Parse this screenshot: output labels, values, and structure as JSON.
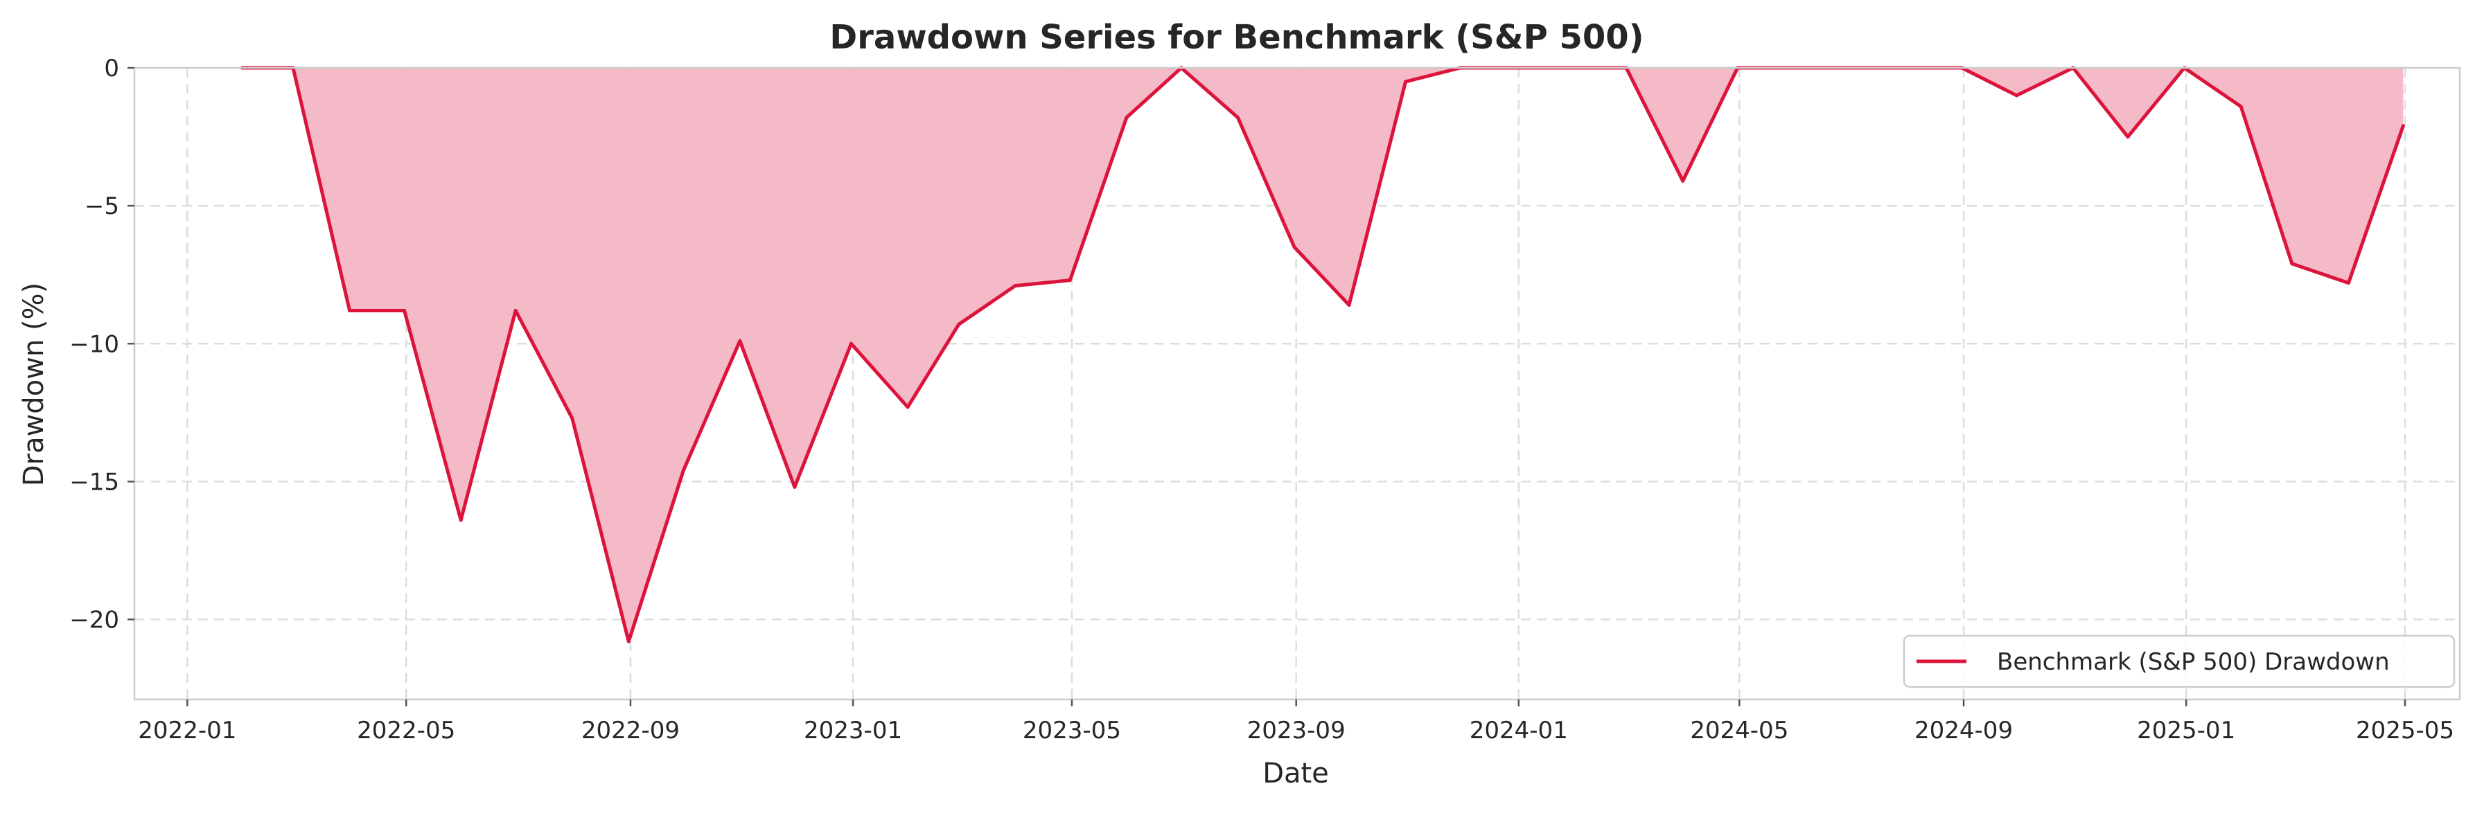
{
  "chart_data": {
    "type": "area",
    "title": "Drawdown Series for Benchmark (S&P 500)",
    "xlabel": "Date",
    "ylabel": "Drawdown (%)",
    "x_ticks": [
      "2022-01",
      "2022-05",
      "2022-09",
      "2023-01",
      "2023-05",
      "2023-09",
      "2024-01",
      "2024-05",
      "2024-09",
      "2025-01",
      "2025-05"
    ],
    "y_ticks": [
      0,
      -5,
      -10,
      -15,
      -20
    ],
    "xlim": [
      "2021-12-03",
      "2025-05-31"
    ],
    "ylim": [
      -22.9,
      0
    ],
    "grid": true,
    "legend_position": "lower-right",
    "colors": {
      "line": "#dc143c",
      "fill": "#f4b6c4",
      "grid": "#dddddd",
      "spine": "#cccccc"
    },
    "series": [
      {
        "name": "Benchmark (S&P 500) Drawdown",
        "x": [
          "2022-01-31",
          "2022-02-28",
          "2022-03-31",
          "2022-04-30",
          "2022-05-31",
          "2022-06-30",
          "2022-07-31",
          "2022-08-31",
          "2022-09-30",
          "2022-10-31",
          "2022-11-30",
          "2022-12-31",
          "2023-01-31",
          "2023-02-28",
          "2023-03-31",
          "2023-04-30",
          "2023-05-31",
          "2023-06-30",
          "2023-07-31",
          "2023-08-31",
          "2023-09-30",
          "2023-10-31",
          "2023-11-30",
          "2023-12-31",
          "2024-01-31",
          "2024-02-29",
          "2024-03-31",
          "2024-04-30",
          "2024-05-31",
          "2024-06-30",
          "2024-07-31",
          "2024-08-31",
          "2024-09-30",
          "2024-10-31",
          "2024-11-30",
          "2024-12-31",
          "2025-01-31",
          "2025-02-28",
          "2025-03-31",
          "2025-04-30"
        ],
        "values": [
          0,
          0,
          -8.8,
          -8.8,
          -16.4,
          -8.8,
          -12.7,
          -20.8,
          -14.6,
          -9.9,
          -15.2,
          -10.0,
          -12.3,
          -9.3,
          -7.9,
          -7.7,
          -1.8,
          0,
          -1.8,
          -6.5,
          -8.6,
          -0.5,
          0,
          0,
          0,
          0,
          -4.1,
          0,
          0,
          0,
          0,
          0,
          -1.0,
          0,
          -2.5,
          0,
          -1.4,
          -7.1,
          -7.8,
          -2.1
        ]
      }
    ]
  }
}
